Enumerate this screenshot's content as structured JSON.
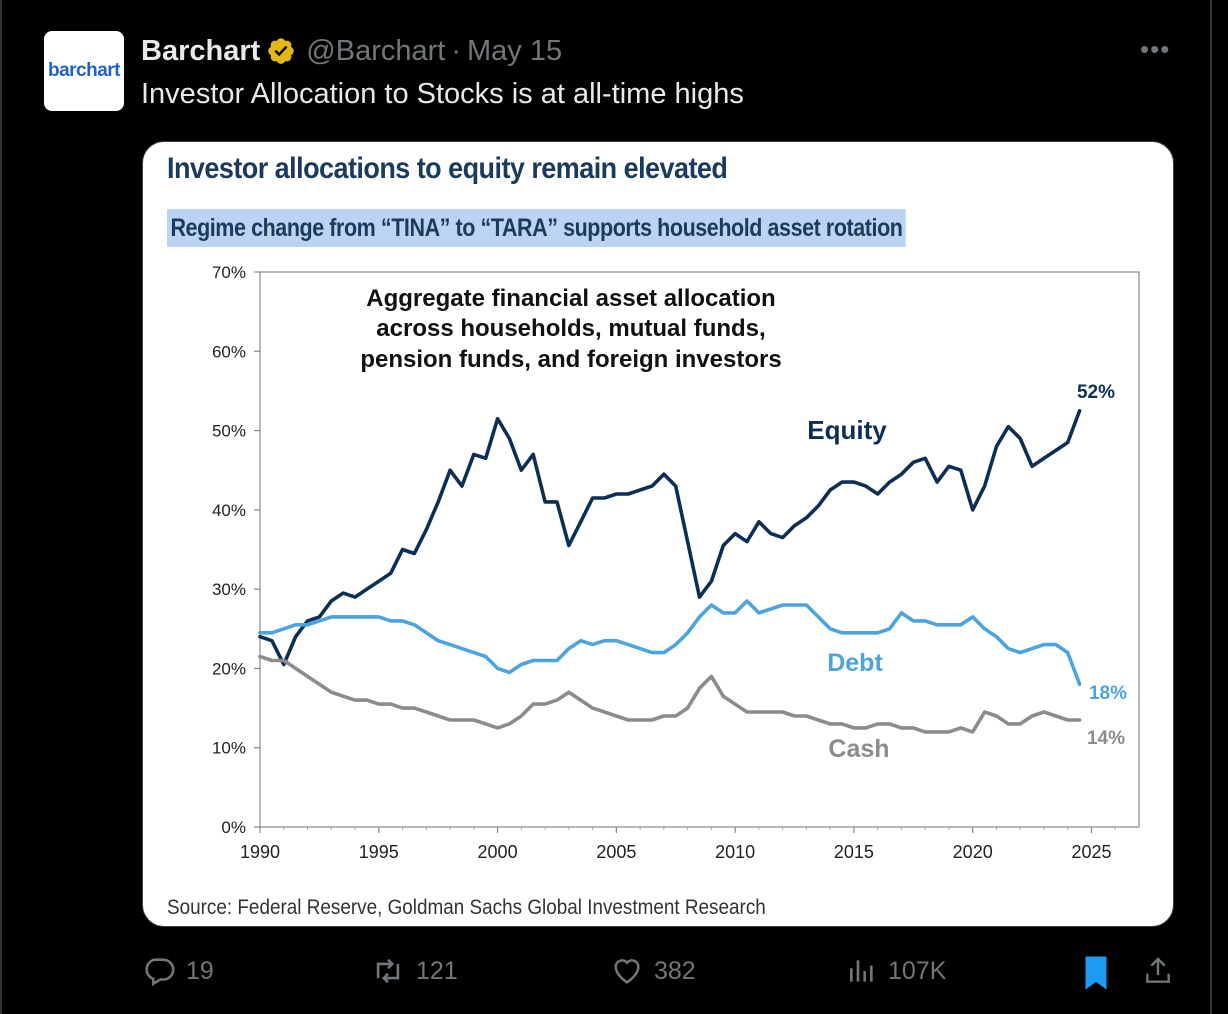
{
  "account": {
    "avatar_text": "barchart",
    "name": "Barchart",
    "handle": "@Barchart",
    "separator": "·",
    "date": "May 15",
    "verified_icon": "verified-badge-icon"
  },
  "more_label": "•••",
  "tweet_text": "Investor Allocation to Stocks is at all-time highs",
  "card": {
    "title": "Investor allocations to equity remain elevated",
    "subtitle": "Regime change from “TINA” to “TARA” supports household asset rotation",
    "source": "Source: Federal Reserve, Goldman Sachs Global Investment Research"
  },
  "chart_data": {
    "type": "line",
    "title": "Aggregate financial asset allocation across households, mutual funds, pension funds, and foreign investors",
    "annotation_lines": [
      "Aggregate financial asset allocation",
      "across households, mutual funds,",
      "pension funds, and foreign investors"
    ],
    "xlim": [
      1990,
      2027
    ],
    "ylim": [
      0,
      70
    ],
    "x_ticks": [
      "1990",
      "1995",
      "2000",
      "2005",
      "2010",
      "2015",
      "2020",
      "2025"
    ],
    "y_ticks": [
      "0%",
      "10%",
      "20%",
      "30%",
      "40%",
      "50%",
      "60%",
      "70%"
    ],
    "series": [
      {
        "name": "Equity",
        "color": "#0d2f55",
        "end_label": "52%",
        "x": [
          1990,
          1990.5,
          1991,
          1991.5,
          1992,
          1992.5,
          1993,
          1993.5,
          1994,
          1994.5,
          1995,
          1995.5,
          1996,
          1996.5,
          1997,
          1997.5,
          1998,
          1998.5,
          1999,
          1999.5,
          2000,
          2000.5,
          2001,
          2001.5,
          2002,
          2002.5,
          2003,
          2003.5,
          2004,
          2004.5,
          2005,
          2005.5,
          2006,
          2006.5,
          2007,
          2007.5,
          2008,
          2008.5,
          2009,
          2009.5,
          2010,
          2010.5,
          2011,
          2011.5,
          2012,
          2012.5,
          2013,
          2013.5,
          2014,
          2014.5,
          2015,
          2015.5,
          2016,
          2016.5,
          2017,
          2017.5,
          2018,
          2018.5,
          2019,
          2019.5,
          2020,
          2020.5,
          2021,
          2021.5,
          2022,
          2022.5,
          2023,
          2023.5,
          2024,
          2024.5
        ],
        "values": [
          24,
          23.5,
          20.5,
          24,
          26,
          26.5,
          28.5,
          29.5,
          29,
          30,
          31,
          32,
          35,
          34.5,
          37.5,
          41,
          45,
          43,
          47,
          46.5,
          51.5,
          49,
          45,
          47,
          41,
          41,
          35.5,
          38.5,
          41.5,
          41.5,
          42,
          42,
          42.5,
          43,
          44.5,
          43,
          36,
          29,
          31,
          35.5,
          37,
          36,
          38.5,
          37,
          36.5,
          38,
          39,
          40.5,
          42.5,
          43.5,
          43.5,
          43,
          42,
          43.5,
          44.5,
          46,
          46.5,
          43.5,
          45.5,
          45,
          40,
          43,
          48,
          50.5,
          49,
          45.5,
          46.5,
          47.5,
          48.5,
          52.5
        ]
      },
      {
        "name": "Debt",
        "color": "#4ca3de",
        "end_label": "18%",
        "x": [
          1990,
          1990.5,
          1991,
          1991.5,
          1992,
          1992.5,
          1993,
          1993.5,
          1994,
          1994.5,
          1995,
          1995.5,
          1996,
          1996.5,
          1997,
          1997.5,
          1998,
          1998.5,
          1999,
          1999.5,
          2000,
          2000.5,
          2001,
          2001.5,
          2002,
          2002.5,
          2003,
          2003.5,
          2004,
          2004.5,
          2005,
          2005.5,
          2006,
          2006.5,
          2007,
          2007.5,
          2008,
          2008.5,
          2009,
          2009.5,
          2010,
          2010.5,
          2011,
          2011.5,
          2012,
          2012.5,
          2013,
          2013.5,
          2014,
          2014.5,
          2015,
          2015.5,
          2016,
          2016.5,
          2017,
          2017.5,
          2018,
          2018.5,
          2019,
          2019.5,
          2020,
          2020.5,
          2021,
          2021.5,
          2022,
          2022.5,
          2023,
          2023.5,
          2024,
          2024.5
        ],
        "values": [
          24.5,
          24.5,
          25,
          25.5,
          25.5,
          26,
          26.5,
          26.5,
          26.5,
          26.5,
          26.5,
          26,
          26,
          25.5,
          24.5,
          23.5,
          23,
          22.5,
          22,
          21.5,
          20,
          19.5,
          20.5,
          21,
          21,
          21,
          22.5,
          23.5,
          23,
          23.5,
          23.5,
          23,
          22.5,
          22,
          22,
          23,
          24.5,
          26.5,
          28,
          27,
          27,
          28.5,
          27,
          27.5,
          28,
          28,
          28,
          26.5,
          25,
          24.5,
          24.5,
          24.5,
          24.5,
          25,
          27,
          26,
          26,
          25.5,
          25.5,
          25.5,
          26.5,
          25,
          24,
          22.5,
          22,
          22.5,
          23,
          23,
          22,
          18
        ]
      },
      {
        "name": "Cash",
        "color": "#8c8c8c",
        "end_label": "14%",
        "x": [
          1990,
          1990.5,
          1991,
          1991.5,
          1992,
          1992.5,
          1993,
          1993.5,
          1994,
          1994.5,
          1995,
          1995.5,
          1996,
          1996.5,
          1997,
          1997.5,
          1998,
          1998.5,
          1999,
          1999.5,
          2000,
          2000.5,
          2001,
          2001.5,
          2002,
          2002.5,
          2003,
          2003.5,
          2004,
          2004.5,
          2005,
          2005.5,
          2006,
          2006.5,
          2007,
          2007.5,
          2008,
          2008.5,
          2009,
          2009.5,
          2010,
          2010.5,
          2011,
          2011.5,
          2012,
          2012.5,
          2013,
          2013.5,
          2014,
          2014.5,
          2015,
          2015.5,
          2016,
          2016.5,
          2017,
          2017.5,
          2018,
          2018.5,
          2019,
          2019.5,
          2020,
          2020.5,
          2021,
          2021.5,
          2022,
          2022.5,
          2023,
          2023.5,
          2024,
          2024.5
        ],
        "values": [
          21.5,
          21,
          21,
          20,
          19,
          18,
          17,
          16.5,
          16,
          16,
          15.5,
          15.5,
          15,
          15,
          14.5,
          14,
          13.5,
          13.5,
          13.5,
          13,
          12.5,
          13,
          14,
          15.5,
          15.5,
          16,
          17,
          16,
          15,
          14.5,
          14,
          13.5,
          13.5,
          13.5,
          14,
          14,
          15,
          17.5,
          19,
          16.5,
          15.5,
          14.5,
          14.5,
          14.5,
          14.5,
          14,
          14,
          13.5,
          13,
          13,
          12.5,
          12.5,
          13,
          13,
          12.5,
          12.5,
          12,
          12,
          12,
          12.5,
          12,
          14.5,
          14,
          13,
          13,
          14,
          14.5,
          14,
          13.5,
          13.5
        ]
      }
    ],
    "series_label_text": [
      "Equity",
      "Debt",
      "Cash"
    ]
  },
  "actions": {
    "reply_count": "19",
    "retweet_count": "121",
    "like_count": "382",
    "views_count": "107K"
  }
}
